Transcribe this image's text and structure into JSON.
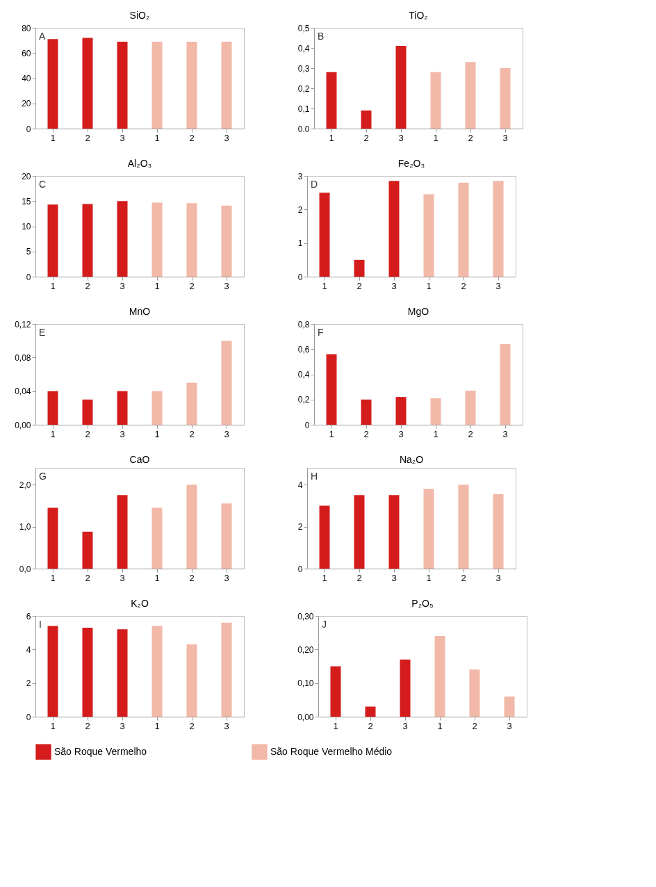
{
  "chart_data": [
    {
      "type": "bar",
      "title": "SiO₂",
      "annotations": [
        "A"
      ],
      "categories": [
        "1",
        "2",
        "3",
        "1",
        "2",
        "3"
      ],
      "legend": "bottom",
      "grid": false,
      "ylim": [
        0,
        80
      ],
      "yticks": [
        0,
        20,
        40,
        60,
        80
      ],
      "series": [
        {
          "name": "São Roque Vermelho",
          "color": "#d41c1c",
          "values": [
            71,
            72,
            69,
            null,
            null,
            null
          ]
        },
        {
          "name": "São Roque Vermelho Médio",
          "color": "#f2b8a8",
          "values": [
            null,
            null,
            null,
            69,
            69,
            69
          ]
        }
      ]
    },
    {
      "type": "bar",
      "title": "TiO₂",
      "annotations": [
        "B"
      ],
      "categories": [
        "1",
        "2",
        "3",
        "1",
        "2",
        "3"
      ],
      "legend": "bottom",
      "grid": false,
      "ylim": [
        0,
        0.5
      ],
      "yticks": [
        {
          "value": 0,
          "label": "0.0"
        },
        {
          "value": 0.1,
          "label": "0,1"
        },
        {
          "value": 0.2,
          "label": "0,2"
        },
        {
          "value": 0.3,
          "label": "0,3"
        },
        {
          "value": 0.4,
          "label": "0,4"
        },
        {
          "value": 0.5,
          "label": "0,5"
        }
      ],
      "series": [
        {
          "name": "São Roque Vermelho",
          "color": "#d41c1c",
          "values": [
            0.28,
            0.09,
            0.41,
            null,
            null,
            null
          ]
        },
        {
          "name": "São Roque Vermelho Médio",
          "color": "#f2b8a8",
          "values": [
            null,
            null,
            null,
            0.28,
            0.33,
            0.3
          ]
        }
      ]
    },
    {
      "type": "bar",
      "title": "Al₂O₃",
      "annotations": [
        "C"
      ],
      "categories": [
        "1",
        "2",
        "3",
        "1",
        "2",
        "3"
      ],
      "legend": "bottom",
      "grid": false,
      "ylim": [
        0,
        20
      ],
      "yticks": [
        0,
        5,
        10,
        15,
        20
      ],
      "series": [
        {
          "name": "São Roque Vermelho",
          "color": "#d41c1c",
          "values": [
            14.3,
            14.4,
            15.0,
            null,
            null,
            null
          ]
        },
        {
          "name": "São Roque Vermelho Médio",
          "color": "#f2b8a8",
          "values": [
            null,
            null,
            null,
            14.7,
            14.6,
            14.1
          ]
        }
      ]
    },
    {
      "type": "bar",
      "title": "Fe₂O₃",
      "annotations": [
        "D"
      ],
      "categories": [
        "1",
        "2",
        "3",
        "1",
        "2",
        "3"
      ],
      "legend": "bottom",
      "grid": false,
      "ylim": [
        0,
        3
      ],
      "yticks": [
        0,
        1,
        2,
        3
      ],
      "series": [
        {
          "name": "São Roque Vermelho",
          "color": "#d41c1c",
          "values": [
            2.5,
            0.5,
            2.85,
            null,
            null,
            null
          ]
        },
        {
          "name": "São Roque Vermelho Médio",
          "color": "#f2b8a8",
          "values": [
            null,
            null,
            null,
            2.45,
            2.8,
            2.85
          ]
        }
      ]
    },
    {
      "type": "bar",
      "title": "MnO",
      "annotations": [
        "E"
      ],
      "categories": [
        "1",
        "2",
        "3",
        "1",
        "2",
        "3"
      ],
      "legend": "bottom",
      "grid": false,
      "ylim": [
        0,
        0.12
      ],
      "yticks": [
        {
          "value": 0,
          "label": "0,00"
        },
        {
          "value": 0.04,
          "label": "0,04"
        },
        {
          "value": 0.08,
          "label": "0,08"
        },
        {
          "value": 0.12,
          "label": "0,12"
        }
      ],
      "series": [
        {
          "name": "São Roque Vermelho",
          "color": "#d41c1c",
          "values": [
            0.04,
            0.03,
            0.04,
            null,
            null,
            null
          ]
        },
        {
          "name": "São Roque Vermelho Médio",
          "color": "#f2b8a8",
          "values": [
            null,
            null,
            null,
            0.04,
            0.05,
            0.1
          ]
        }
      ]
    },
    {
      "type": "bar",
      "title": "MgO",
      "annotations": [
        "F"
      ],
      "categories": [
        "1",
        "2",
        "3",
        "1",
        "2",
        "3"
      ],
      "legend": "bottom",
      "grid": false,
      "ylim": [
        0,
        0.8
      ],
      "yticks": [
        0,
        {
          "value": 0.2,
          "label": "0,2"
        },
        {
          "value": 0.4,
          "label": "0,4"
        },
        {
          "value": 0.6,
          "label": "0,6"
        },
        {
          "value": 0.8,
          "label": "0,8"
        }
      ],
      "series": [
        {
          "name": "São Roque Vermelho",
          "color": "#d41c1c",
          "values": [
            0.56,
            0.2,
            0.22,
            null,
            null,
            null
          ]
        },
        {
          "name": "São Roque Vermelho Médio",
          "color": "#f2b8a8",
          "values": [
            null,
            null,
            null,
            0.21,
            0.27,
            0.64
          ]
        }
      ]
    },
    {
      "type": "bar",
      "title": "CaO",
      "annotations": [
        "G"
      ],
      "categories": [
        "1",
        "2",
        "3",
        "1",
        "2",
        "3"
      ],
      "legend": "bottom",
      "grid": false,
      "ylim": [
        0,
        2.4
      ],
      "yticks": [
        {
          "value": 0,
          "label": "0,0"
        },
        {
          "value": 1,
          "label": "1,0"
        },
        {
          "value": 2,
          "label": "2,0"
        }
      ],
      "series": [
        {
          "name": "São Roque Vermelho",
          "color": "#d41c1c",
          "values": [
            1.45,
            0.88,
            1.75,
            null,
            null,
            null
          ]
        },
        {
          "name": "São Roque Vermelho Médio",
          "color": "#f2b8a8",
          "values": [
            null,
            null,
            null,
            1.45,
            2.0,
            1.55
          ]
        }
      ]
    },
    {
      "type": "bar",
      "title": "Na₂O",
      "annotations": [
        "H"
      ],
      "categories": [
        "1",
        "2",
        "3",
        "1",
        "2",
        "3"
      ],
      "legend": "bottom",
      "grid": false,
      "ylim": [
        0,
        4.8
      ],
      "yticks": [
        0,
        2,
        4
      ],
      "series": [
        {
          "name": "São Roque Vermelho",
          "color": "#d41c1c",
          "values": [
            3.0,
            3.5,
            3.5,
            null,
            null,
            null
          ]
        },
        {
          "name": "São Roque Vermelho Médio",
          "color": "#f2b8a8",
          "values": [
            null,
            null,
            null,
            3.8,
            4.0,
            3.55
          ]
        }
      ]
    },
    {
      "type": "bar",
      "title": "K₂O",
      "annotations": [
        "I"
      ],
      "categories": [
        "1",
        "2",
        "3",
        "1",
        "2",
        "3"
      ],
      "legend": "bottom",
      "grid": false,
      "ylim": [
        0,
        6
      ],
      "yticks": [
        0,
        2,
        4,
        6
      ],
      "series": [
        {
          "name": "São Roque Vermelho",
          "color": "#d41c1c",
          "values": [
            5.4,
            5.3,
            5.2,
            null,
            null,
            null
          ]
        },
        {
          "name": "São Roque Vermelho Médio",
          "color": "#f2b8a8",
          "values": [
            null,
            null,
            null,
            5.4,
            4.3,
            5.6
          ]
        }
      ]
    },
    {
      "type": "bar",
      "title": "P₂O₅",
      "annotations": [
        "J"
      ],
      "categories": [
        "1",
        "2",
        "3",
        "1",
        "2",
        "3"
      ],
      "legend": "bottom",
      "grid": false,
      "ylim": [
        0,
        0.3
      ],
      "yticks": [
        {
          "value": 0,
          "label": "0,00"
        },
        {
          "value": 0.1,
          "label": "0,10"
        },
        {
          "value": 0.2,
          "label": "0,20"
        },
        {
          "value": 0.3,
          "label": "0,30"
        }
      ],
      "series": [
        {
          "name": "São Roque Vermelho",
          "color": "#d41c1c",
          "values": [
            0.15,
            0.03,
            0.17,
            null,
            null,
            null
          ]
        },
        {
          "name": "São Roque Vermelho Médio",
          "color": "#f2b8a8",
          "values": [
            null,
            null,
            null,
            0.24,
            0.14,
            0.06
          ]
        }
      ]
    }
  ]
}
